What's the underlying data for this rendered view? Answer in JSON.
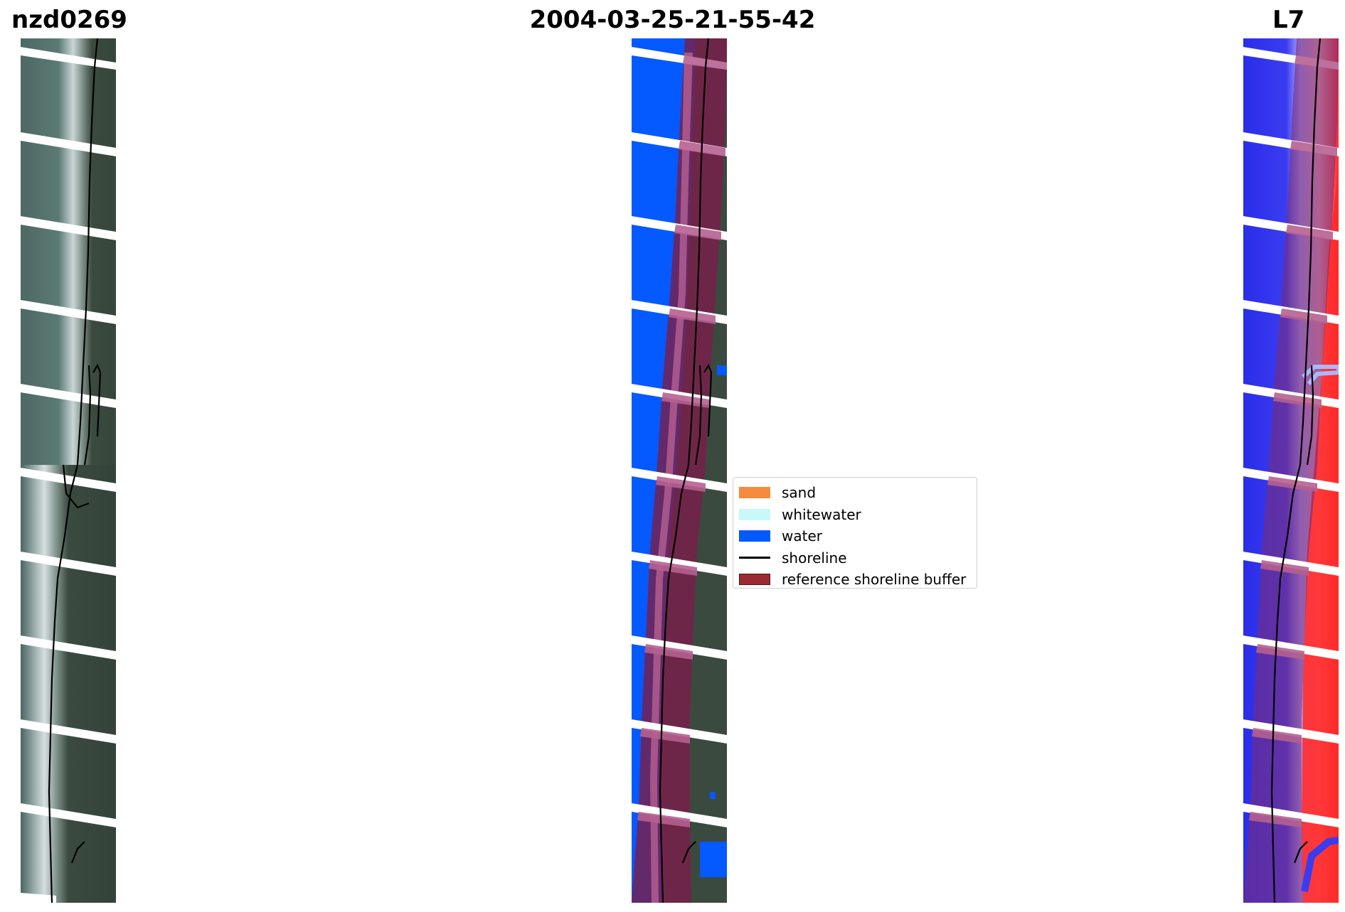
{
  "figure": {
    "left_title": "nzd0269",
    "center_title": "2004-03-25-21-55-42",
    "right_title": "L7"
  },
  "legend": {
    "items": [
      {
        "label": "sand",
        "color": "#f58b3f",
        "kind": "patch"
      },
      {
        "label": "whitewater",
        "color": "#c8f8f8",
        "kind": "patch"
      },
      {
        "label": "water",
        "color": "#0459ff",
        "kind": "patch"
      },
      {
        "label": "shoreline",
        "color": "#000000",
        "kind": "line"
      },
      {
        "label": "reference shoreline buffer",
        "color": "#9a2b33",
        "kind": "patch"
      }
    ]
  },
  "colors": {
    "land": "#3a4a3e",
    "sea": "#3d5650",
    "surf": "#d9e4e6",
    "water_class": "#0459ff",
    "buffer": "#7a1f4a",
    "index_water": "#2a2ee8",
    "index_land": "#ff2a2a"
  }
}
